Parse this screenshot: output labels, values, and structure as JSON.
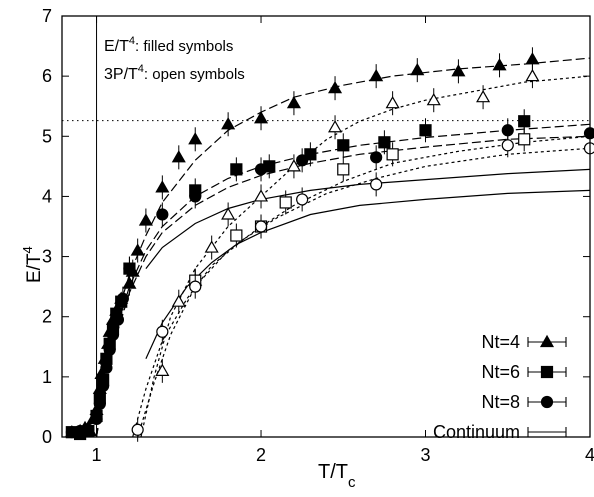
{
  "chart_data": {
    "type": "scatter",
    "xlabel": "T/T",
    "xlabel_sub": "c",
    "ylabel": "E/T",
    "ylabel_sup": "4",
    "xlim": [
      0.79,
      4.0
    ],
    "ylim": [
      0,
      7
    ],
    "xticks": [
      "1",
      "2",
      "3",
      "4"
    ],
    "yticks": [
      "0",
      "1",
      "2",
      "3",
      "4",
      "5",
      "6",
      "7"
    ],
    "annotations": {
      "line1": {
        "main": "E/T",
        "sup": "4",
        "rest": ": filled symbols"
      },
      "line2": {
        "main": "3P/T",
        "sup": "4",
        "rest": ": open symbols"
      }
    },
    "reference_lines": {
      "vertical_x": 1.0,
      "horizontal_y": 5.26
    },
    "legend": {
      "placement": "bottom-right",
      "entries": [
        "Nt=4",
        "Nt=6",
        "Nt=8",
        "Continuum"
      ]
    },
    "series": [
      {
        "name": "Nt=4",
        "marker": "triangle",
        "fill": "filled",
        "x": [
          0.85,
          0.9,
          0.93,
          0.96,
          0.98,
          1.0,
          1.02,
          1.03,
          1.05,
          1.07,
          1.08,
          1.1,
          1.12,
          1.15,
          1.2,
          1.22,
          1.25,
          1.3,
          1.4,
          1.5,
          1.6,
          1.8,
          2.0,
          2.2,
          2.45,
          2.7,
          2.95,
          3.2,
          3.45,
          3.65
        ],
        "y": [
          0.08,
          0.1,
          0.15,
          0.1,
          0.3,
          0.45,
          0.8,
          1.05,
          1.3,
          1.55,
          1.75,
          1.95,
          2.1,
          2.3,
          2.55,
          2.75,
          3.1,
          3.6,
          4.15,
          4.65,
          4.95,
          5.2,
          5.3,
          5.55,
          5.8,
          6.0,
          6.1,
          6.08,
          6.18,
          6.28
        ]
      },
      {
        "name": "Nt=6",
        "marker": "square",
        "fill": "filled",
        "x": [
          0.85,
          0.9,
          0.95,
          1.0,
          1.02,
          1.04,
          1.06,
          1.08,
          1.1,
          1.12,
          1.15,
          1.2,
          1.6,
          1.85,
          2.05,
          2.3,
          2.5,
          2.75,
          3.0,
          3.6
        ],
        "y": [
          0.08,
          0.05,
          0.1,
          0.35,
          0.65,
          0.95,
          1.3,
          1.55,
          1.8,
          2.05,
          2.25,
          2.8,
          4.1,
          4.45,
          4.5,
          4.7,
          4.85,
          4.9,
          5.1,
          5.25
        ]
      },
      {
        "name": "Nt=8",
        "marker": "circle",
        "fill": "filled",
        "x": [
          0.85,
          0.9,
          0.95,
          1.0,
          1.02,
          1.04,
          1.06,
          1.08,
          1.1,
          1.13,
          1.16,
          1.2,
          1.4,
          1.6,
          2.0,
          2.25,
          2.7,
          3.5,
          4.0
        ],
        "y": [
          0.08,
          0.1,
          0.12,
          0.3,
          0.55,
          0.85,
          1.15,
          1.45,
          1.7,
          1.95,
          2.3,
          2.8,
          3.7,
          4.0,
          4.45,
          4.6,
          4.65,
          5.1,
          5.05
        ]
      },
      {
        "name": "Nt=4 3P/T4",
        "marker": "triangle",
        "fill": "open",
        "x": [
          1.4,
          1.5,
          1.6,
          1.7,
          1.8,
          2.0,
          2.2,
          2.45,
          2.8,
          3.05,
          3.35,
          3.65
        ],
        "y": [
          1.1,
          2.25,
          2.6,
          3.15,
          3.7,
          4.0,
          4.5,
          5.15,
          5.55,
          5.6,
          5.65,
          6.0
        ]
      },
      {
        "name": "Nt=6 3P/T4",
        "marker": "square",
        "fill": "open",
        "x": [
          1.6,
          1.85,
          2.0,
          2.15,
          2.5,
          2.8,
          3.6
        ],
        "y": [
          2.6,
          3.35,
          3.5,
          3.9,
          4.45,
          4.7,
          4.95
        ]
      },
      {
        "name": "Nt=8 3P/T4",
        "marker": "circle",
        "fill": "open",
        "x": [
          1.25,
          1.4,
          1.6,
          2.0,
          2.25,
          2.7,
          3.5,
          4.0
        ],
        "y": [
          0.12,
          1.75,
          2.5,
          3.5,
          3.95,
          4.2,
          4.85,
          4.8
        ]
      }
    ],
    "curves": [
      {
        "name": "Nt=4 E",
        "style": "dashed",
        "x": [
          1.0,
          1.05,
          1.1,
          1.2,
          1.3,
          1.4,
          1.6,
          1.8,
          2.0,
          2.2,
          2.5,
          2.8,
          3.2,
          3.6,
          4.0
        ],
        "y": [
          0.0,
          1.0,
          1.8,
          2.7,
          3.35,
          3.9,
          4.6,
          5.1,
          5.4,
          5.65,
          5.85,
          6.0,
          6.12,
          6.2,
          6.3
        ]
      },
      {
        "name": "Nt=4 3P",
        "style": "dotted",
        "x": [
          1.27,
          1.35,
          1.45,
          1.6,
          1.8,
          2.0,
          2.2,
          2.4,
          2.6,
          2.8,
          3.0,
          3.3,
          3.6,
          4.0
        ],
        "y": [
          0.0,
          1.0,
          2.0,
          2.8,
          3.5,
          4.0,
          4.5,
          4.95,
          5.25,
          5.45,
          5.6,
          5.75,
          5.9,
          6.0
        ]
      },
      {
        "name": "Nt=6 E",
        "style": "dashed",
        "x": [
          1.0,
          1.05,
          1.1,
          1.2,
          1.3,
          1.4,
          1.6,
          1.8,
          2.0,
          2.3,
          2.6,
          3.0,
          3.5,
          4.0
        ],
        "y": [
          0.0,
          0.9,
          1.6,
          2.5,
          3.1,
          3.5,
          4.0,
          4.3,
          4.5,
          4.7,
          4.85,
          4.98,
          5.1,
          5.2
        ]
      },
      {
        "name": "Nt=6 3P",
        "style": "dotted",
        "x": [
          1.25,
          1.35,
          1.45,
          1.6,
          1.8,
          2.0,
          2.2,
          2.5,
          2.8,
          3.2,
          3.6,
          4.0
        ],
        "y": [
          0.0,
          0.9,
          1.7,
          2.5,
          3.1,
          3.5,
          3.85,
          4.25,
          4.55,
          4.75,
          4.9,
          5.0
        ]
      },
      {
        "name": "Nt=8 E",
        "style": "dashed",
        "x": [
          1.0,
          1.05,
          1.1,
          1.2,
          1.3,
          1.4,
          1.6,
          1.8,
          2.0,
          2.3,
          2.6,
          3.0,
          3.5,
          4.0
        ],
        "y": [
          0.0,
          0.85,
          1.5,
          2.4,
          3.0,
          3.4,
          3.85,
          4.15,
          4.35,
          4.55,
          4.7,
          4.82,
          4.95,
          5.0
        ]
      },
      {
        "name": "Nt=8 3P",
        "style": "dotted",
        "x": [
          1.22,
          1.3,
          1.4,
          1.55,
          1.7,
          1.9,
          2.1,
          2.4,
          2.7,
          3.0,
          3.5,
          4.0
        ],
        "y": [
          0.0,
          0.8,
          1.6,
          2.3,
          2.85,
          3.3,
          3.65,
          4.05,
          4.3,
          4.5,
          4.7,
          4.8
        ]
      },
      {
        "name": "Continuum E",
        "style": "solid",
        "x": [
          1.3,
          1.4,
          1.6,
          1.8,
          2.0,
          2.3,
          2.6,
          3.0,
          3.5,
          4.0
        ],
        "y": [
          2.8,
          3.15,
          3.55,
          3.8,
          3.95,
          4.1,
          4.2,
          4.28,
          4.38,
          4.45
        ]
      },
      {
        "name": "Continuum 3P",
        "style": "solid",
        "x": [
          1.3,
          1.4,
          1.55,
          1.7,
          1.85,
          2.0,
          2.3,
          2.6,
          3.0,
          3.5,
          4.0
        ],
        "y": [
          1.3,
          1.9,
          2.5,
          2.9,
          3.2,
          3.4,
          3.7,
          3.85,
          3.95,
          4.05,
          4.1
        ]
      }
    ]
  }
}
